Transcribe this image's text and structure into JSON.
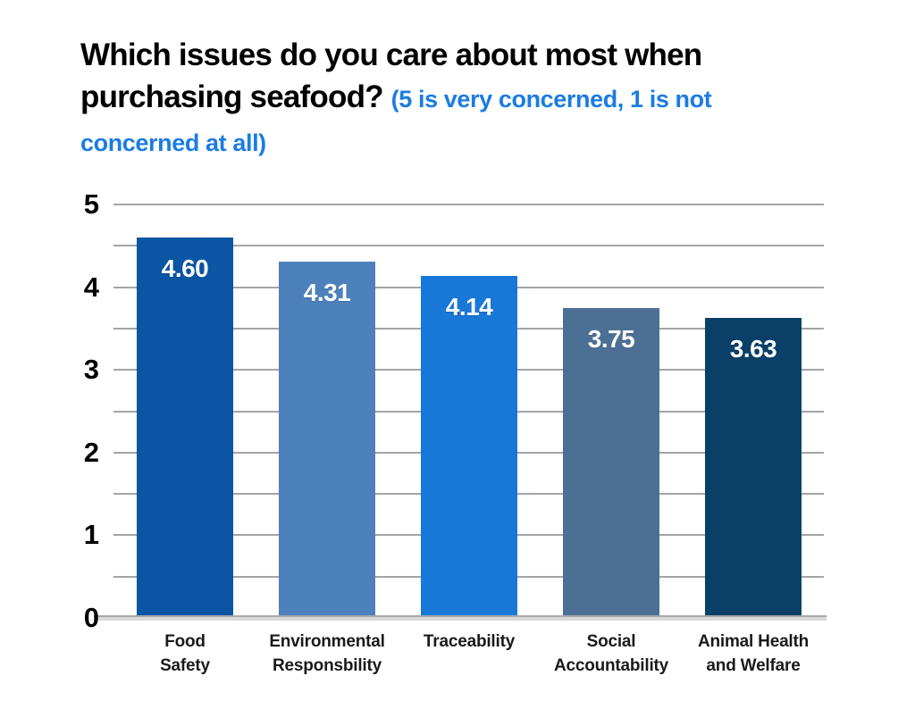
{
  "title": {
    "line1_black": "Which issues do you care about most when",
    "line2_black": "purchasing seafood?",
    "line2_blue": "(5 is very concerned, 1 is not",
    "line3_blue": "concerned at all)",
    "full_black": "Which issues do you care about most when purchasing seafood?",
    "full_blue": "(5 is very concerned, 1 is not concerned at all)",
    "accent_color": "#1b7ce2"
  },
  "chart_data": {
    "type": "bar",
    "title": "Which issues do you care about most when purchasing seafood? (5 is very concerned, 1 is not concerned at all)",
    "categories": [
      "Food Safety",
      "Environmental Responsbility",
      "Traceability",
      "Social Accountability",
      "Animal Health and Welfare"
    ],
    "category_lines": [
      "Food\nSafety",
      "Environmental\nResponsbility",
      "Traceability",
      "Social\nAccountability",
      "Animal Health\nand Welfare"
    ],
    "values": [
      4.6,
      4.31,
      4.14,
      3.75,
      3.63
    ],
    "value_labels": [
      "4.60",
      "4.31",
      "4.14",
      "3.75",
      "3.63"
    ],
    "bar_colors": [
      "#0a55a4",
      "#4c81bb",
      "#1878d8",
      "#4c7095",
      "#0a4068"
    ],
    "value_label_color": "#ffffff",
    "xlabel": "",
    "ylabel": "",
    "ylim": [
      0,
      5
    ],
    "yticks": [
      "0",
      "1",
      "2",
      "3",
      "4",
      "5"
    ],
    "gridline_interval": 0.5,
    "grid_color": "#a4a4a4",
    "axis_line_color": "#a8a8a8",
    "legend": "none",
    "grid": "on"
  }
}
